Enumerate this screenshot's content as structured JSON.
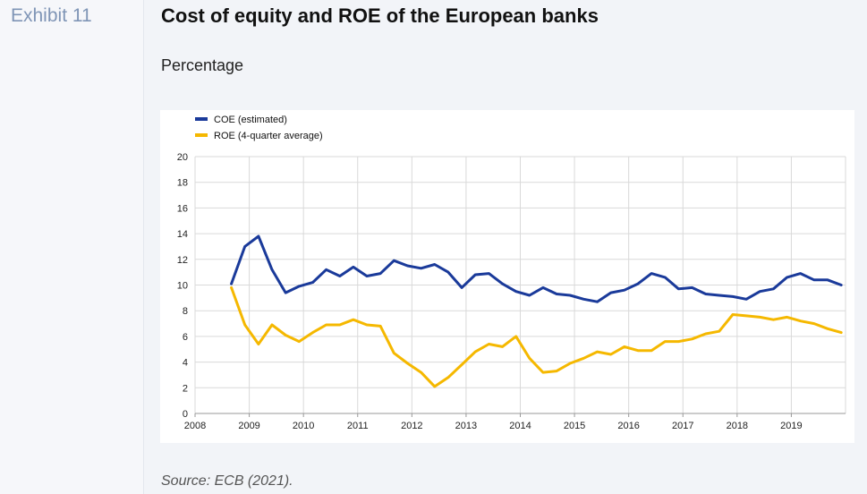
{
  "exhibit_label": "Exhibit 11",
  "title": "Cost of equity and ROE of the European banks",
  "subtitle": "Percentage",
  "source": "Source: ECB (2021).",
  "colors": {
    "coe": "#1a3a9a",
    "roe": "#f5b800",
    "grid": "#d9d9d9"
  },
  "chart_data": {
    "type": "line",
    "title": "",
    "xlabel": "",
    "ylabel": "",
    "ylim": [
      0,
      20
    ],
    "yticks": [
      0,
      2,
      4,
      6,
      8,
      10,
      12,
      14,
      16,
      18,
      20
    ],
    "xlim": [
      2008,
      2020
    ],
    "xticks": [
      2008,
      2009,
      2010,
      2011,
      2012,
      2013,
      2014,
      2015,
      2016,
      2017,
      2018,
      2019
    ],
    "grid": true,
    "legend_position": "top-left",
    "series": [
      {
        "name": "COE (estimated)",
        "x": [
          2008.67,
          2008.92,
          2009.17,
          2009.42,
          2009.67,
          2009.92,
          2010.17,
          2010.42,
          2010.67,
          2010.92,
          2011.17,
          2011.42,
          2011.67,
          2011.92,
          2012.17,
          2012.42,
          2012.67,
          2012.92,
          2013.17,
          2013.42,
          2013.67,
          2013.92,
          2014.17,
          2014.42,
          2014.67,
          2014.92,
          2015.17,
          2015.42,
          2015.67,
          2015.92,
          2016.17,
          2016.42,
          2016.67,
          2016.92,
          2017.17,
          2017.42,
          2017.67,
          2017.92,
          2018.17,
          2018.42,
          2018.67,
          2018.92,
          2019.17,
          2019.42,
          2019.67,
          2019.92
        ],
        "values": [
          10.1,
          13.0,
          13.8,
          11.2,
          9.4,
          9.9,
          10.2,
          11.2,
          10.7,
          11.4,
          10.7,
          10.9,
          11.9,
          11.5,
          11.3,
          11.6,
          11.0,
          9.8,
          10.8,
          10.9,
          10.1,
          9.5,
          9.2,
          9.8,
          9.3,
          9.2,
          8.9,
          8.7,
          9.4,
          9.6,
          10.1,
          10.9,
          10.6,
          9.7,
          9.8,
          9.3,
          9.2,
          9.1,
          8.9,
          9.5,
          9.7,
          10.6,
          10.9,
          10.4,
          10.4,
          10.0
        ]
      },
      {
        "name": "ROE (4-quarter average)",
        "x": [
          2008.67,
          2008.92,
          2009.17,
          2009.42,
          2009.67,
          2009.92,
          2010.17,
          2010.42,
          2010.67,
          2010.92,
          2011.17,
          2011.42,
          2011.67,
          2011.92,
          2012.17,
          2012.42,
          2012.67,
          2012.92,
          2013.17,
          2013.42,
          2013.67,
          2013.92,
          2014.17,
          2014.42,
          2014.67,
          2014.92,
          2015.17,
          2015.42,
          2015.67,
          2015.92,
          2016.17,
          2016.42,
          2016.67,
          2016.92,
          2017.17,
          2017.42,
          2017.67,
          2017.92,
          2018.17,
          2018.42,
          2018.67,
          2018.92,
          2019.17,
          2019.42,
          2019.67,
          2019.92
        ],
        "values": [
          9.8,
          6.9,
          5.4,
          6.9,
          6.1,
          5.6,
          6.3,
          6.9,
          6.9,
          7.3,
          6.9,
          6.8,
          4.7,
          3.9,
          3.2,
          2.1,
          2.8,
          3.8,
          4.8,
          5.4,
          5.2,
          6.0,
          4.3,
          3.2,
          3.3,
          3.9,
          4.3,
          4.8,
          4.6,
          5.2,
          4.9,
          4.9,
          5.6,
          5.6,
          5.8,
          6.2,
          6.4,
          7.7,
          7.6,
          7.5,
          7.3,
          7.5,
          7.2,
          7.0,
          6.6,
          6.3
        ]
      }
    ]
  }
}
